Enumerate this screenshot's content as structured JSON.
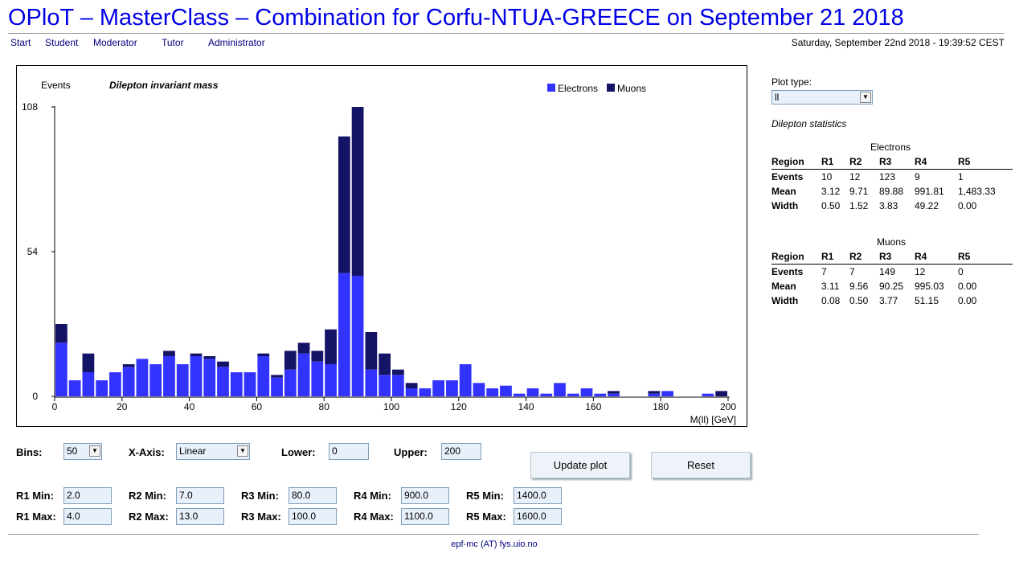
{
  "page_title": "OPloT – MasterClass – Combination for Corfu-NTUA-GREECE on September 21 2018",
  "nav": [
    "Start",
    "Student",
    "Moderator",
    "Tutor",
    "Administrator"
  ],
  "datetime": "Saturday, September 22nd 2018 - 19:39:52 CEST",
  "colors": {
    "electrons": "#3333ff",
    "muons": "#141466",
    "title": "#0000e6"
  },
  "chart_data": {
    "type": "bar",
    "stacked": true,
    "title": "Dilepton invariant mass",
    "ylabel": "Events",
    "xlabel": "M(ll) [GeV]",
    "xlim": [
      0,
      200
    ],
    "ylim": [
      0,
      108
    ],
    "bin_width": 4,
    "x_ticks": [
      "0",
      "20",
      "40",
      "60",
      "80",
      "100",
      "120",
      "140",
      "160",
      "180",
      "200"
    ],
    "y_ticks": [
      "0",
      "54",
      "108"
    ],
    "legend": [
      "Electrons",
      "Muons"
    ],
    "legend_position": "top-right",
    "series": [
      {
        "name": "Electrons",
        "color": "#3333ff",
        "values": [
          20,
          6,
          9,
          6,
          9,
          11,
          14,
          12,
          15,
          12,
          15,
          14,
          11,
          9,
          9,
          15,
          7,
          10,
          16,
          13,
          12,
          46,
          45,
          10,
          8,
          8,
          3,
          3,
          6,
          6,
          12,
          5,
          3,
          4,
          1,
          3,
          1,
          5,
          1,
          3,
          1,
          1,
          0,
          0,
          1,
          2,
          0,
          0,
          1,
          0
        ]
      },
      {
        "name": "Muons",
        "color": "#141466",
        "values": [
          7,
          0,
          7,
          0,
          0,
          1,
          0,
          0,
          2,
          0,
          1,
          1,
          2,
          0,
          0,
          1,
          1,
          7,
          4,
          4,
          13,
          51,
          63,
          14,
          8,
          2,
          2,
          0,
          0,
          0,
          0,
          0,
          0,
          0,
          0,
          0,
          0,
          0,
          0,
          0,
          0,
          1,
          0,
          0,
          1,
          0,
          0,
          0,
          0,
          2
        ]
      }
    ]
  },
  "right_panel": {
    "plot_type_label": "Plot type:",
    "plot_type_value": "ll",
    "stats_title": "Dilepton statistics",
    "electrons": {
      "title": "Electrons",
      "header": [
        "Region",
        "R1",
        "R2",
        "R3",
        "R4",
        "R5"
      ],
      "rows": [
        [
          "Events",
          "10",
          "12",
          "123",
          "9",
          "1"
        ],
        [
          "Mean",
          "3.12",
          "9.71",
          "89.88",
          "991.81",
          "1,483.33"
        ],
        [
          "Width",
          "0.50",
          "1.52",
          "3.83",
          "49.22",
          "0.00"
        ]
      ]
    },
    "muons": {
      "title": "Muons",
      "header": [
        "Region",
        "R1",
        "R2",
        "R3",
        "R4",
        "R5"
      ],
      "rows": [
        [
          "Events",
          "7",
          "7",
          "149",
          "12",
          "0"
        ],
        [
          "Mean",
          "3.11",
          "9.56",
          "90.25",
          "995.03",
          "0.00"
        ],
        [
          "Width",
          "0.08",
          "0.50",
          "3.77",
          "51.15",
          "0.00"
        ]
      ]
    }
  },
  "form": {
    "bins_label": "Bins:",
    "bins_value": "50",
    "xaxis_label": "X-Axis:",
    "xaxis_value": "Linear",
    "lower_label": "Lower:",
    "lower_value": "0",
    "upper_label": "Upper:",
    "upper_value": "200",
    "update_button": "Update plot",
    "reset_button": "Reset",
    "regions": [
      {
        "min_label": "R1 Min:",
        "min": "2.0",
        "max_label": "R1 Max:",
        "max": "4.0"
      },
      {
        "min_label": "R2 Min:",
        "min": "7.0",
        "max_label": "R2 Max:",
        "max": "13.0"
      },
      {
        "min_label": "R3 Min:",
        "min": "80.0",
        "max_label": "R3 Max:",
        "max": "100.0"
      },
      {
        "min_label": "R4 Min:",
        "min": "900.0",
        "max_label": "R4 Max:",
        "max": "1100.0"
      },
      {
        "min_label": "R5 Min:",
        "min": "1400.0",
        "max_label": "R5 Max:",
        "max": "1600.0"
      }
    ]
  },
  "footer": "epf-mc (AT) fys.uio.no"
}
